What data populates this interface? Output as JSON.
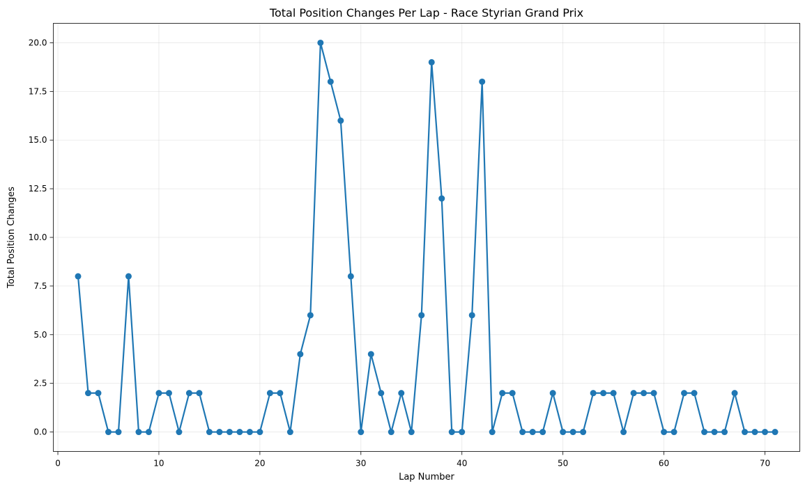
{
  "chart_data": {
    "type": "line",
    "title": "Total Position Changes Per Lap - Race Styrian Grand Prix",
    "xlabel": "Lap Number",
    "ylabel": "Total Position Changes",
    "xlim": [
      -0.45,
      73.45
    ],
    "ylim": [
      -1.0,
      21.0
    ],
    "xticks": [
      0,
      10,
      20,
      30,
      40,
      50,
      60,
      70
    ],
    "xtick_labels": [
      "0",
      "10",
      "20",
      "30",
      "40",
      "50",
      "60",
      "70"
    ],
    "yticks": [
      0,
      2.5,
      5,
      7.5,
      10,
      12.5,
      15,
      17.5,
      20
    ],
    "ytick_labels": [
      "0.0",
      "2.5",
      "5.0",
      "7.5",
      "10.0",
      "12.5",
      "15.0",
      "17.5",
      "20.0"
    ],
    "grid": true,
    "legend": false,
    "series": [
      {
        "color": "#1f77b4",
        "marker": "circle",
        "x": [
          2,
          3,
          4,
          5,
          6,
          7,
          8,
          9,
          10,
          11,
          12,
          13,
          14,
          15,
          16,
          17,
          18,
          19,
          20,
          21,
          22,
          23,
          24,
          25,
          26,
          27,
          28,
          29,
          30,
          31,
          32,
          33,
          34,
          35,
          36,
          37,
          38,
          39,
          40,
          41,
          42,
          43,
          44,
          45,
          46,
          47,
          48,
          49,
          50,
          51,
          52,
          53,
          54,
          55,
          56,
          57,
          58,
          59,
          60,
          61,
          62,
          63,
          64,
          65,
          66,
          67,
          68,
          69,
          70,
          71
        ],
        "y": [
          8,
          2,
          2,
          0,
          0,
          8,
          0,
          0,
          2,
          2,
          0,
          2,
          2,
          0,
          0,
          0,
          0,
          0,
          0,
          2,
          2,
          0,
          4,
          6,
          20,
          18,
          16,
          8,
          0,
          4,
          2,
          0,
          2,
          0,
          6,
          19,
          12,
          0,
          0,
          6,
          18,
          0,
          2,
          2,
          0,
          0,
          0,
          2,
          0,
          0,
          0,
          2,
          2,
          2,
          0,
          2,
          2,
          2,
          0,
          0,
          2,
          2,
          0,
          0,
          0,
          2,
          0,
          0,
          0,
          0
        ]
      }
    ]
  }
}
